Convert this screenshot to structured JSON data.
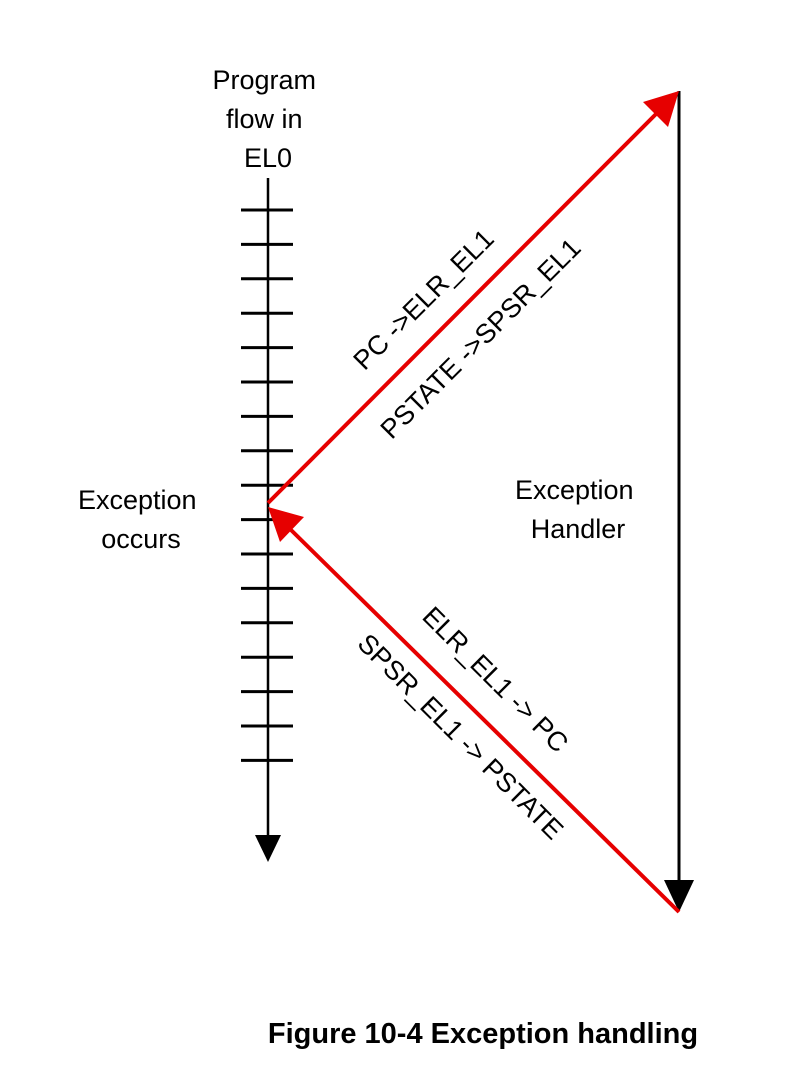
{
  "diagram": {
    "program_flow_label": [
      "Program",
      "flow in",
      "EL0"
    ],
    "exception_occurs_label": [
      "Exception",
      "occurs"
    ],
    "exception_handler_label": [
      "Exception",
      "Handler"
    ],
    "entry_arrow_labels": {
      "line1": "PC ->ELR_EL1",
      "line2": "PSTATE ->SPSR_EL1"
    },
    "return_arrow_labels": {
      "line1": "ELR_EL1 -> PC",
      "line2": "SPSR_EL1 -> PSTATE"
    },
    "caption": "Figure 10-4 Exception handling",
    "colors": {
      "flow": "#000000",
      "exception_path": "#e60000"
    }
  }
}
